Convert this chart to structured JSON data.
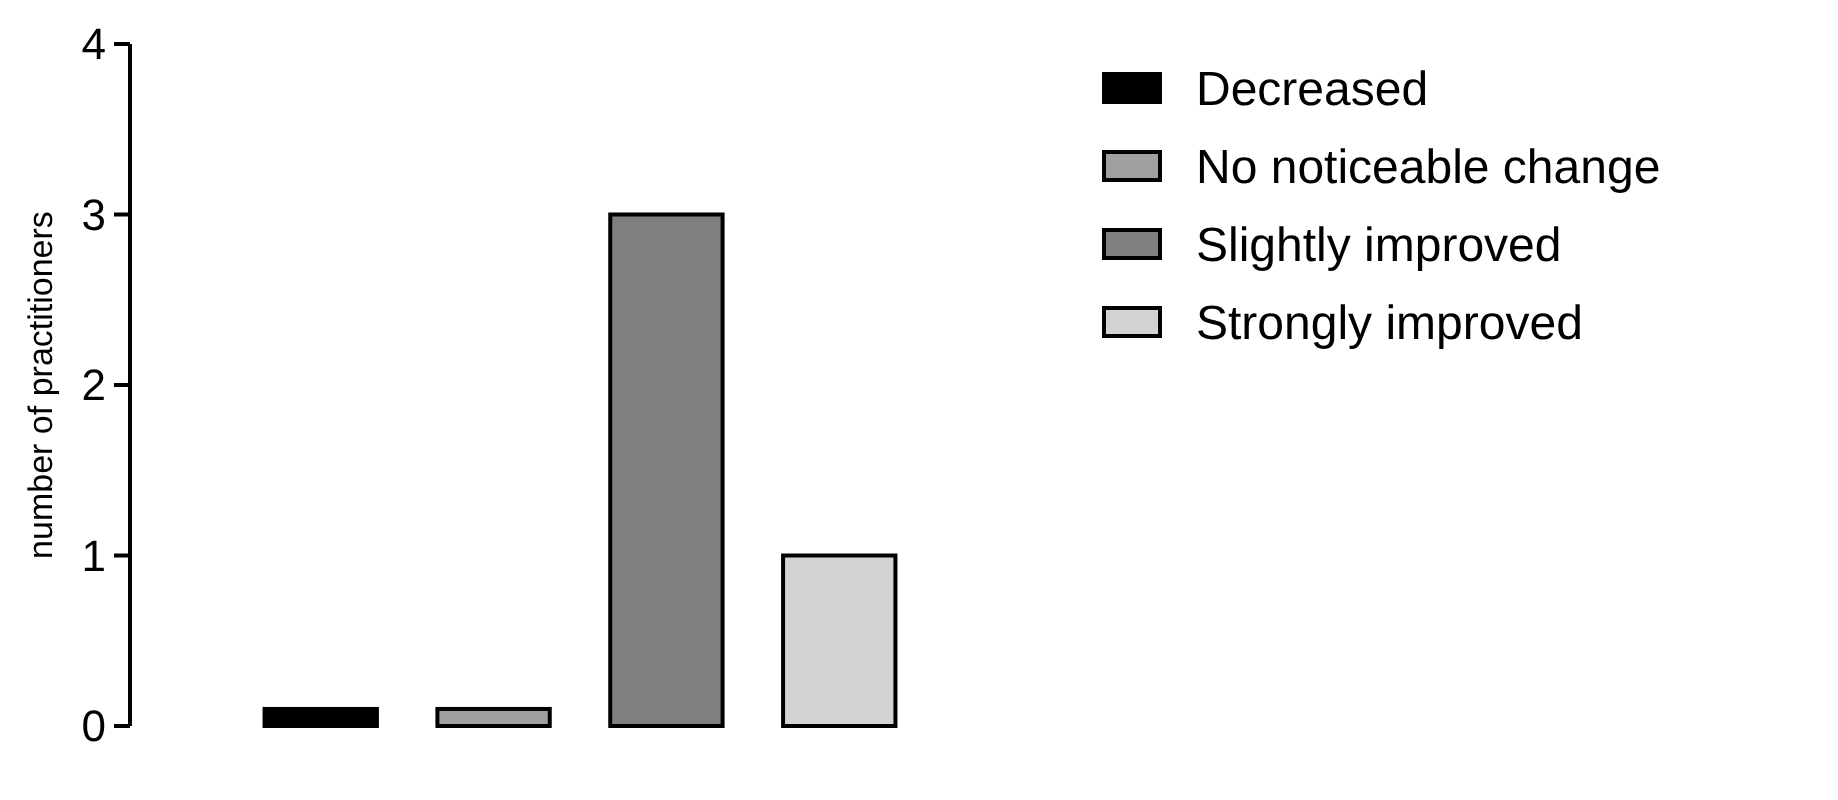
{
  "chart_data": {
    "type": "bar",
    "stacked": true,
    "ylabel": "number of practitioners",
    "categories": [
      null,
      null,
      null,
      null
    ],
    "series": [
      {
        "name": "Decreased",
        "color": "#000000",
        "values": [
          0.1,
          null,
          null,
          null
        ]
      },
      {
        "name": "No noticeable change",
        "color": "#a0a0a0",
        "values": [
          null,
          0.1,
          null,
          null
        ]
      },
      {
        "name": "Slightly improved",
        "color": "#808080",
        "values": [
          null,
          null,
          3,
          null
        ]
      },
      {
        "name": "Strongly improved",
        "color": "#d3d3d3",
        "values": [
          null,
          null,
          null,
          1
        ]
      }
    ],
    "ylim": [
      0,
      4
    ],
    "yticks": [
      0,
      1,
      2,
      3,
      4
    ],
    "legend": "right",
    "grid": false
  }
}
